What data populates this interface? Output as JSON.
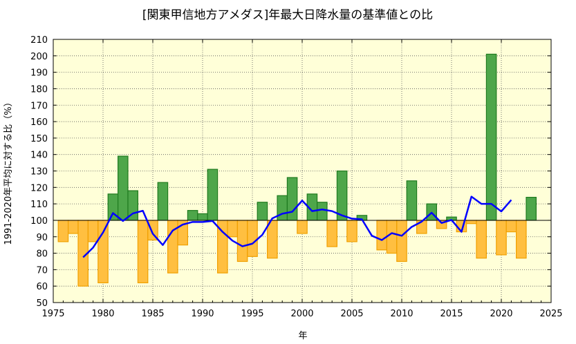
{
  "chart_data": {
    "type": "bar",
    "title": "[関東甲信地方アメダス]年最大日降水量の基準値との比",
    "xlabel": "年",
    "ylabel": "1991-2020年平均に対する比（%）",
    "xlim": [
      1975,
      2025
    ],
    "ylim": [
      50,
      210
    ],
    "baseline": 100,
    "xticks": [
      1975,
      1980,
      1985,
      1990,
      1995,
      2000,
      2005,
      2010,
      2015,
      2020,
      2025
    ],
    "yticks": [
      50,
      60,
      70,
      80,
      90,
      100,
      110,
      120,
      130,
      140,
      150,
      160,
      170,
      180,
      190,
      200,
      210
    ],
    "grid": true,
    "colors": {
      "above": "#4ea64a",
      "above_edge": "#1f7a1f",
      "below": "#ffbf40",
      "below_edge": "#f0a000",
      "line": "#0000ff",
      "plot_background": "#ffffd8"
    },
    "series": [
      {
        "kind": "bar",
        "x": [
          1976,
          1977,
          1978,
          1979,
          1980,
          1981,
          1982,
          1983,
          1984,
          1985,
          1986,
          1987,
          1988,
          1989,
          1990,
          1991,
          1992,
          1993,
          1994,
          1995,
          1996,
          1997,
          1998,
          1999,
          2000,
          2001,
          2002,
          2003,
          2004,
          2005,
          2006,
          2007,
          2008,
          2009,
          2010,
          2011,
          2012,
          2013,
          2014,
          2015,
          2016,
          2017,
          2018,
          2019,
          2020,
          2021,
          2022,
          2023
        ],
        "values": [
          87,
          92,
          60,
          87,
          62,
          116,
          139,
          118,
          62,
          88,
          123,
          68,
          85,
          106,
          104,
          131,
          68,
          90,
          75,
          78,
          111,
          77,
          115,
          126,
          92,
          116,
          111,
          84,
          130,
          87,
          103,
          100,
          82,
          80,
          75,
          124,
          92,
          110,
          95,
          102,
          93,
          98,
          77,
          201,
          79,
          93,
          77,
          114
        ]
      },
      {
        "kind": "line",
        "x": [
          1978,
          1979,
          1980,
          1981,
          1982,
          1983,
          1984,
          1985,
          1986,
          1987,
          1988,
          1989,
          1990,
          1991,
          1992,
          1993,
          1994,
          1995,
          1996,
          1997,
          1998,
          1999,
          2000,
          2001,
          2002,
          2003,
          2004,
          2005,
          2006,
          2007,
          2008,
          2009,
          2010,
          2011,
          2012,
          2013,
          2014,
          2015,
          2016,
          2017,
          2018,
          2019,
          2020,
          2021
        ],
        "values": [
          77.5,
          83.4,
          92.6,
          104.4,
          99.6,
          104.2,
          105.8,
          91.8,
          85.0,
          93.8,
          97.4,
          99.0,
          99.0,
          99.6,
          93.0,
          87.6,
          84.2,
          85.8,
          91.2,
          101.2,
          104.0,
          105.2,
          112.0,
          105.6,
          106.6,
          105.6,
          103.0,
          101.0,
          100.6,
          90.6,
          88.0,
          92.2,
          90.6,
          96.0,
          99.2,
          104.6,
          98.4,
          100.2,
          93.0,
          114.4,
          110.0,
          110.0,
          105.4,
          112.4
        ]
      }
    ]
  }
}
